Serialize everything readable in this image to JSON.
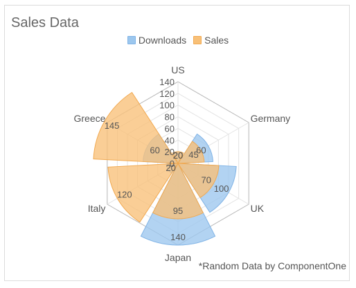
{
  "chart_data": {
    "type": "radar-column",
    "title": "Sales Data",
    "categories": [
      "US",
      "Germany",
      "UK",
      "Japan",
      "Italy",
      "Greece"
    ],
    "series": [
      {
        "name": "Downloads",
        "values": [
          20,
          60,
          100,
          140,
          20,
          60
        ],
        "color": "#9cc7ee",
        "stroke": "#7fb3e6"
      },
      {
        "name": "Sales",
        "values": [
          20,
          45,
          70,
          95,
          120,
          145
        ],
        "color": "#f8c078",
        "stroke": "#f1a950"
      }
    ],
    "radial_ticks": [
      0,
      20,
      40,
      60,
      80,
      100,
      120,
      140
    ],
    "radial_range": [
      0,
      140
    ],
    "legend_position": "top",
    "footnote": "*Random Data by ComponentOne"
  }
}
